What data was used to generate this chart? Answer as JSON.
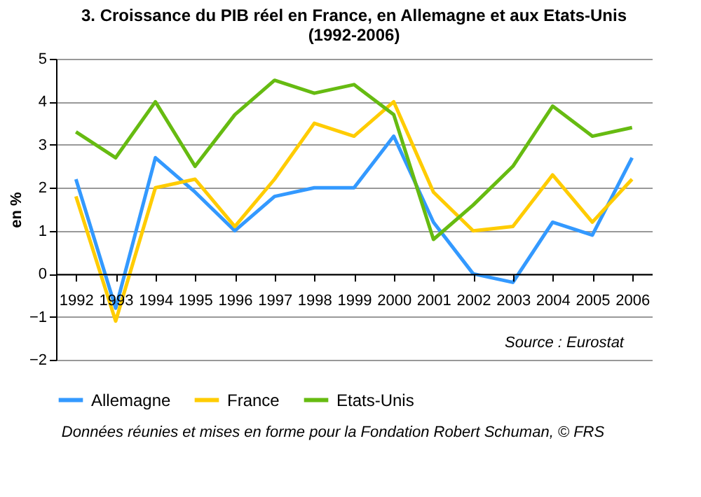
{
  "chart_data": {
    "type": "line",
    "title": [
      "3. Croissance du PIB réel en France, en Allemagne et aux Etats-Unis",
      "(1992-2006)"
    ],
    "ylabel": "en %",
    "categories": [
      "1992",
      "1993",
      "1994",
      "1995",
      "1996",
      "1997",
      "1998",
      "1999",
      "2000",
      "2001",
      "2002",
      "2003",
      "2004",
      "2005",
      "2006"
    ],
    "series": [
      {
        "name": "Allemagne",
        "color": "#3399ff",
        "values": [
          2.2,
          -0.8,
          2.7,
          1.9,
          1.0,
          1.8,
          2.0,
          2.0,
          3.2,
          1.2,
          0.0,
          -0.2,
          1.2,
          0.9,
          2.7
        ]
      },
      {
        "name": "France",
        "color": "#ffcc00",
        "values": [
          1.8,
          -1.1,
          2.0,
          2.2,
          1.1,
          2.2,
          3.5,
          3.2,
          4.0,
          1.9,
          1.0,
          1.1,
          2.3,
          1.2,
          2.2
        ]
      },
      {
        "name": "Etats-Unis",
        "color": "#66bb11",
        "values": [
          3.3,
          2.7,
          4.0,
          2.5,
          3.7,
          4.5,
          4.2,
          4.4,
          3.7,
          0.8,
          1.6,
          2.5,
          3.9,
          3.2,
          3.4
        ]
      }
    ],
    "ylim": [
      -2,
      5
    ],
    "yticks": [
      -2,
      -1,
      0,
      1,
      2,
      3,
      4,
      5
    ],
    "grid": "y",
    "legend": "bottom",
    "marker": "none",
    "line_style": "solid",
    "annotations": [
      "Source : Eurostat",
      "Données réunies et mises en forme pour la Fondation Robert Schuman, © FRS"
    ]
  }
}
